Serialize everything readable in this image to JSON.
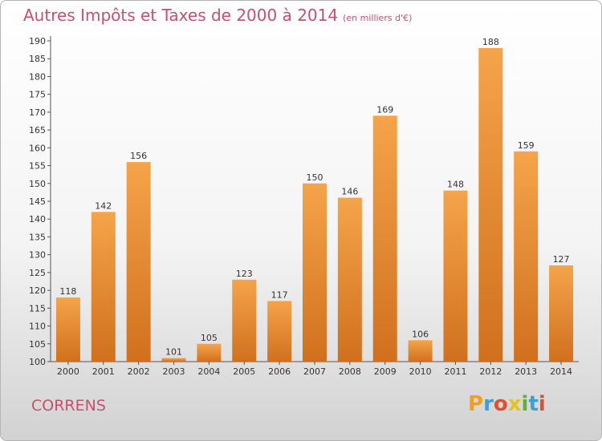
{
  "title": "Autres Impôts et Taxes de 2000 à 2014",
  "unit": "(en milliers d'€)",
  "place": "CORRENS",
  "logo": {
    "letters": [
      "P",
      "r",
      "o",
      "x",
      "i",
      "t",
      "i"
    ],
    "colors": [
      "#f0a020",
      "#3aa0d8",
      "#e05030",
      "#e8c020",
      "#60b040",
      "#3aa0d8",
      "#e05030"
    ]
  },
  "colors": {
    "bar_top": "#f5a44a",
    "bar_bottom": "#d0701e",
    "accent": "#c8506e"
  },
  "chart_data": {
    "type": "bar",
    "title": "Autres Impôts et Taxes de 2000 à 2014",
    "xlabel": "",
    "ylabel": "",
    "categories": [
      "2000",
      "2001",
      "2002",
      "2003",
      "2004",
      "2005",
      "2006",
      "2007",
      "2008",
      "2009",
      "2010",
      "2011",
      "2012",
      "2013",
      "2014"
    ],
    "values": [
      118,
      142,
      156,
      101,
      105,
      123,
      117,
      150,
      146,
      169,
      106,
      148,
      188,
      159,
      127
    ],
    "ylim": [
      100,
      190
    ],
    "yticks": [
      100,
      105,
      110,
      115,
      120,
      125,
      130,
      135,
      140,
      145,
      150,
      155,
      160,
      165,
      170,
      175,
      180,
      185,
      190
    ],
    "grid": false,
    "legend": "none"
  }
}
